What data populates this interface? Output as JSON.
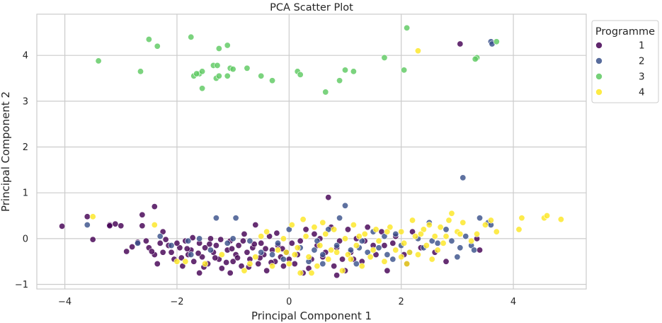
{
  "chart_data": {
    "type": "scatter",
    "title": "PCA Scatter Plot",
    "xlabel": "Principal Component 1",
    "ylabel": "Principal Component 2",
    "xlim": [
      -4.5,
      5.3
    ],
    "ylim": [
      -1.1,
      4.9
    ],
    "xticks": [
      -4,
      -2,
      0,
      2,
      4
    ],
    "yticks": [
      -1,
      0,
      1,
      2,
      3,
      4
    ],
    "grid": true,
    "legend": {
      "title": "Programme",
      "placement": "outside-top-right"
    },
    "series": [
      {
        "name": "1",
        "color": "#440154",
        "points": [
          [
            -4.05,
            0.27
          ],
          [
            -3.6,
            0.48
          ],
          [
            -3.5,
            -0.02
          ],
          [
            -3.2,
            0.3
          ],
          [
            -3.0,
            0.28
          ],
          [
            -2.9,
            -0.28
          ],
          [
            -2.62,
            0.52
          ],
          [
            -2.62,
            0.28
          ],
          [
            -2.4,
            0.7
          ],
          [
            -2.55,
            -0.05
          ],
          [
            -2.5,
            -0.2
          ],
          [
            -2.4,
            -0.35
          ],
          [
            -2.3,
            -0.1
          ],
          [
            -2.25,
            -0.3
          ],
          [
            -2.15,
            -0.15
          ],
          [
            -2.05,
            -0.45
          ],
          [
            -1.95,
            -0.2
          ],
          [
            -1.9,
            -0.6
          ],
          [
            -1.85,
            -0.05
          ],
          [
            -1.8,
            -0.35
          ],
          [
            -1.75,
            -0.25
          ],
          [
            -1.7,
            -0.5
          ],
          [
            -1.6,
            -0.1
          ],
          [
            -1.55,
            -0.4
          ],
          [
            -1.5,
            -0.2
          ],
          [
            -1.45,
            -0.55
          ],
          [
            -1.4,
            0.0
          ],
          [
            -1.35,
            -0.3
          ],
          [
            -1.3,
            -0.15
          ],
          [
            -1.25,
            -0.45
          ],
          [
            -1.2,
            -0.65
          ],
          [
            -1.1,
            -0.25
          ],
          [
            -1.05,
            -0.05
          ],
          [
            -1.0,
            -0.5
          ],
          [
            -0.95,
            -0.35
          ],
          [
            -0.9,
            -0.15
          ],
          [
            -0.85,
            -0.6
          ],
          [
            -0.8,
            0.1
          ],
          [
            -0.75,
            -0.3
          ],
          [
            -0.7,
            -0.45
          ],
          [
            -0.65,
            -0.2
          ],
          [
            -0.6,
            0.3
          ],
          [
            -0.55,
            -0.55
          ],
          [
            -0.5,
            -0.1
          ],
          [
            -0.45,
            -0.35
          ],
          [
            -0.4,
            -0.7
          ],
          [
            -0.35,
            0.05
          ],
          [
            -0.3,
            -0.25
          ],
          [
            -0.25,
            -0.5
          ],
          [
            -0.2,
            -0.15
          ],
          [
            -0.15,
            -0.4
          ],
          [
            -0.1,
            -0.6
          ],
          [
            -0.05,
            -0.3
          ],
          [
            0.05,
            -0.1
          ],
          [
            0.1,
            -0.55
          ],
          [
            0.15,
            -0.35
          ],
          [
            0.25,
            -0.75
          ],
          [
            0.3,
            0.2
          ],
          [
            0.4,
            -0.45
          ],
          [
            0.5,
            -0.15
          ],
          [
            0.55,
            0.0
          ],
          [
            0.6,
            -0.4
          ],
          [
            0.7,
            0.9
          ],
          [
            0.75,
            0.25
          ],
          [
            0.8,
            -0.6
          ],
          [
            0.85,
            -0.2
          ],
          [
            0.95,
            -0.45
          ],
          [
            1.05,
            0.2
          ],
          [
            1.1,
            -0.3
          ],
          [
            1.2,
            0.0
          ],
          [
            1.3,
            -0.5
          ],
          [
            1.4,
            0.25
          ],
          [
            1.5,
            -0.15
          ],
          [
            1.65,
            0.15
          ],
          [
            1.75,
            -0.7
          ],
          [
            1.85,
            -0.1
          ],
          [
            2.05,
            -0.35
          ],
          [
            2.2,
            0.15
          ],
          [
            2.6,
            -0.3
          ],
          [
            2.8,
            -0.5
          ],
          [
            3.05,
            4.25
          ],
          [
            3.35,
            0.0
          ],
          [
            -2.8,
            -0.18
          ],
          [
            -2.7,
            -0.08
          ],
          [
            -2.45,
            -0.28
          ],
          [
            -2.35,
            -0.55
          ],
          [
            -2.2,
            -0.02
          ],
          [
            -2.1,
            -0.3
          ],
          [
            -2.0,
            -0.1
          ],
          [
            -1.92,
            -0.42
          ],
          [
            -1.82,
            -0.22
          ],
          [
            -1.72,
            0.02
          ],
          [
            -1.62,
            -0.32
          ],
          [
            -1.52,
            -0.62
          ],
          [
            -1.42,
            -0.12
          ],
          [
            -1.32,
            -0.42
          ],
          [
            -1.22,
            -0.02
          ],
          [
            -1.12,
            -0.52
          ],
          [
            -1.02,
            -0.22
          ],
          [
            -0.92,
            -0.42
          ],
          [
            -0.82,
            -0.05
          ],
          [
            -0.72,
            -0.62
          ],
          [
            -0.62,
            -0.12
          ],
          [
            -0.52,
            -0.42
          ],
          [
            -0.42,
            -0.22
          ],
          [
            -0.32,
            -0.52
          ],
          [
            -0.22,
            0.12
          ],
          [
            -0.12,
            -0.22
          ],
          [
            0.0,
            -0.45
          ],
          [
            0.2,
            -0.05
          ],
          [
            0.35,
            -0.65
          ],
          [
            0.45,
            0.1
          ],
          [
            0.65,
            -0.3
          ],
          [
            0.9,
            -0.05
          ],
          [
            1.0,
            -0.7
          ],
          [
            1.15,
            -0.45
          ],
          [
            1.35,
            -0.05
          ],
          [
            1.55,
            -0.35
          ],
          [
            1.9,
            0.05
          ],
          [
            2.35,
            -0.2
          ],
          [
            3.4,
            -0.25
          ],
          [
            -3.2,
            0.28
          ],
          [
            -3.1,
            0.32
          ],
          [
            -2.25,
            0.15
          ],
          [
            -1.05,
            -0.75
          ],
          [
            -1.6,
            -0.75
          ],
          [
            0.85,
            -0.8
          ],
          [
            1.7,
            -0.15
          ],
          [
            2.1,
            -0.55
          ]
        ]
      },
      {
        "name": "2",
        "color": "#3b528b",
        "points": [
          [
            -3.6,
            0.3
          ],
          [
            -2.7,
            -0.1
          ],
          [
            -2.3,
            0.05
          ],
          [
            -2.1,
            -0.15
          ],
          [
            -1.8,
            -0.05
          ],
          [
            -1.75,
            -0.35
          ],
          [
            -1.6,
            0.0
          ],
          [
            -1.4,
            -0.25
          ],
          [
            -1.3,
            0.45
          ],
          [
            -1.1,
            -0.1
          ],
          [
            -0.95,
            0.45
          ],
          [
            -0.7,
            -0.05
          ],
          [
            -0.5,
            -0.3
          ],
          [
            -0.2,
            -0.1
          ],
          [
            -0.1,
            -0.45
          ],
          [
            0.0,
            0.2
          ],
          [
            0.2,
            -0.2
          ],
          [
            0.35,
            -0.5
          ],
          [
            0.5,
            -0.05
          ],
          [
            0.6,
            -0.35
          ],
          [
            0.7,
            0.2
          ],
          [
            0.85,
            -0.15
          ],
          [
            0.9,
            0.45
          ],
          [
            1.0,
            0.72
          ],
          [
            1.1,
            -0.25
          ],
          [
            1.2,
            -0.55
          ],
          [
            1.3,
            -0.05
          ],
          [
            1.4,
            -0.3
          ],
          [
            1.5,
            0.15
          ],
          [
            1.6,
            -0.2
          ],
          [
            1.7,
            0.05
          ],
          [
            1.85,
            -0.45
          ],
          [
            1.9,
            0.1
          ],
          [
            2.0,
            -0.15
          ],
          [
            2.15,
            -0.3
          ],
          [
            2.3,
            0.0
          ],
          [
            2.4,
            -0.2
          ],
          [
            2.5,
            0.35
          ],
          [
            2.65,
            -0.1
          ],
          [
            2.8,
            0.2
          ],
          [
            2.9,
            -0.05
          ],
          [
            3.0,
            -0.4
          ],
          [
            3.1,
            1.33
          ],
          [
            3.15,
            0.05
          ],
          [
            3.25,
            -0.15
          ],
          [
            3.3,
            -0.25
          ],
          [
            3.4,
            0.45
          ],
          [
            3.55,
            0.35
          ],
          [
            3.6,
            0.3
          ],
          [
            3.6,
            4.3
          ],
          [
            3.62,
            4.25
          ],
          [
            0.6,
            -0.55
          ],
          [
            -0.3,
            -0.35
          ],
          [
            1.25,
            -0.2
          ],
          [
            2.55,
            -0.05
          ],
          [
            -1.0,
            0.0
          ],
          [
            0.45,
            -0.25
          ],
          [
            1.75,
            -0.35
          ],
          [
            3.05,
            -0.2
          ]
        ]
      },
      {
        "name": "3",
        "color": "#5ec962",
        "points": [
          [
            -3.4,
            3.88
          ],
          [
            -2.5,
            4.35
          ],
          [
            -2.35,
            4.2
          ],
          [
            -2.65,
            3.65
          ],
          [
            -1.75,
            4.4
          ],
          [
            -1.7,
            3.55
          ],
          [
            -1.6,
            3.6
          ],
          [
            -1.55,
            3.65
          ],
          [
            -1.55,
            3.28
          ],
          [
            -1.35,
            3.78
          ],
          [
            -1.3,
            3.5
          ],
          [
            -1.25,
            3.55
          ],
          [
            -1.25,
            4.15
          ],
          [
            -1.1,
            4.22
          ],
          [
            -1.1,
            3.55
          ],
          [
            -1.05,
            3.72
          ],
          [
            -1.0,
            3.7
          ],
          [
            -0.75,
            3.72
          ],
          [
            -0.5,
            3.55
          ],
          [
            -0.3,
            3.45
          ],
          [
            0.15,
            3.65
          ],
          [
            0.2,
            3.58
          ],
          [
            0.65,
            3.2
          ],
          [
            0.9,
            3.45
          ],
          [
            1.0,
            3.68
          ],
          [
            1.15,
            3.65
          ],
          [
            1.7,
            3.95
          ],
          [
            2.05,
            3.68
          ],
          [
            2.1,
            4.6
          ],
          [
            3.35,
            3.95
          ],
          [
            3.32,
            3.92
          ],
          [
            3.7,
            4.3
          ],
          [
            -1.65,
            3.6
          ],
          [
            -1.28,
            3.78
          ]
        ]
      },
      {
        "name": "4",
        "color": "#fde725",
        "points": [
          [
            -3.5,
            0.48
          ],
          [
            -2.4,
            0.3
          ],
          [
            -2.0,
            -0.5
          ],
          [
            -1.5,
            -0.55
          ],
          [
            -1.2,
            -0.35
          ],
          [
            -0.8,
            -0.7
          ],
          [
            -0.6,
            -0.4
          ],
          [
            -0.4,
            0.15
          ],
          [
            -0.3,
            -0.6
          ],
          [
            -0.2,
            -0.25
          ],
          [
            -0.1,
            0.0
          ],
          [
            0.0,
            -0.55
          ],
          [
            0.05,
            0.3
          ],
          [
            0.15,
            -0.2
          ],
          [
            0.2,
            -0.75
          ],
          [
            0.3,
            0.05
          ],
          [
            0.35,
            -0.4
          ],
          [
            0.45,
            0.25
          ],
          [
            0.5,
            -0.6
          ],
          [
            0.55,
            -0.15
          ],
          [
            0.65,
            0.1
          ],
          [
            0.7,
            -0.45
          ],
          [
            0.8,
            0.2
          ],
          [
            0.85,
            -0.3
          ],
          [
            0.95,
            -0.7
          ],
          [
            1.0,
            0.0
          ],
          [
            1.05,
            -0.35
          ],
          [
            1.15,
            0.3
          ],
          [
            1.2,
            -0.15
          ],
          [
            1.3,
            -0.6
          ],
          [
            1.35,
            0.1
          ],
          [
            1.45,
            -0.4
          ],
          [
            1.55,
            0.2
          ],
          [
            1.6,
            -0.05
          ],
          [
            1.7,
            -0.5
          ],
          [
            1.8,
            0.25
          ],
          [
            1.9,
            -0.25
          ],
          [
            2.0,
            0.15
          ],
          [
            2.05,
            -0.1
          ],
          [
            2.1,
            -0.55
          ],
          [
            2.2,
            0.4
          ],
          [
            2.25,
            0.05
          ],
          [
            2.3,
            -0.35
          ],
          [
            2.4,
            0.2
          ],
          [
            2.45,
            -0.15
          ],
          [
            2.5,
            0.3
          ],
          [
            2.55,
            -0.45
          ],
          [
            2.6,
            0.05
          ],
          [
            2.7,
            0.25
          ],
          [
            2.75,
            -0.1
          ],
          [
            2.85,
            0.4
          ],
          [
            2.9,
            0.55
          ],
          [
            3.0,
            0.15
          ],
          [
            3.1,
            0.35
          ],
          [
            3.25,
            -0.05
          ],
          [
            3.35,
            0.1
          ],
          [
            3.5,
            0.3
          ],
          [
            3.6,
            0.4
          ],
          [
            3.7,
            0.15
          ],
          [
            4.1,
            0.2
          ],
          [
            4.15,
            0.45
          ],
          [
            4.55,
            0.45
          ],
          [
            4.6,
            0.5
          ],
          [
            4.85,
            0.42
          ],
          [
            2.3,
            4.1
          ],
          [
            -0.7,
            -0.55
          ],
          [
            -0.05,
            -0.3
          ],
          [
            0.4,
            -0.75
          ],
          [
            1.1,
            -0.45
          ],
          [
            2.15,
            -0.3
          ],
          [
            -1.85,
            -0.5
          ],
          [
            0.25,
            0.42
          ],
          [
            0.75,
            -0.25
          ],
          [
            1.25,
            0.05
          ],
          [
            1.75,
            0.15
          ],
          [
            2.35,
            0.1
          ],
          [
            2.65,
            -0.25
          ],
          [
            3.05,
            0.1
          ],
          [
            -0.5,
            0.05
          ],
          [
            0.1,
            -0.35
          ],
          [
            0.6,
            0.35
          ],
          [
            1.5,
            -0.25
          ],
          [
            2.0,
            -0.4
          ],
          [
            2.8,
            0.05
          ]
        ]
      }
    ]
  }
}
